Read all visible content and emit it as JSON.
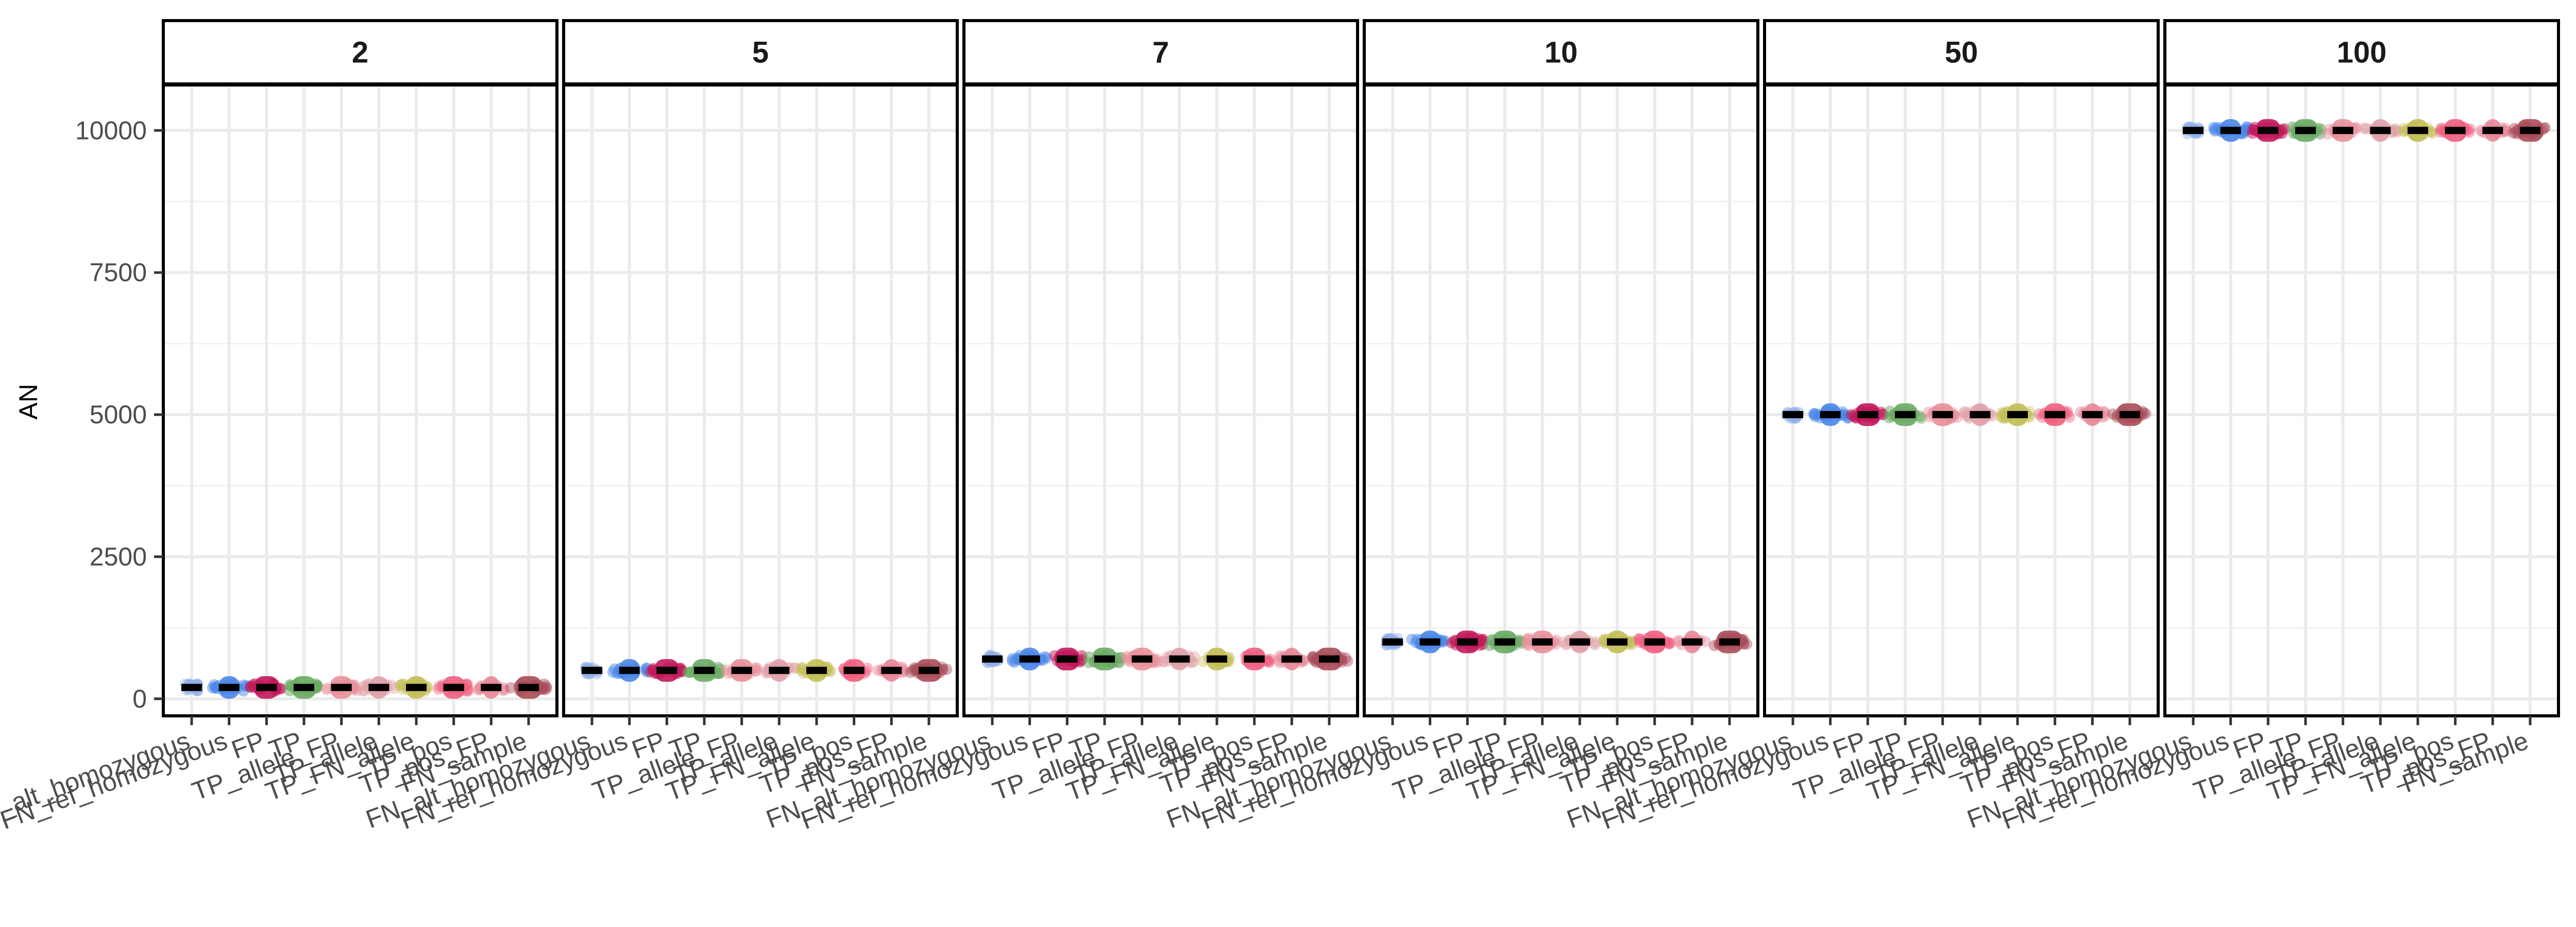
{
  "chart_data": {
    "type": "scatter",
    "ylabel": "AN",
    "xlabel": "",
    "ylim": [
      -300,
      10800
    ],
    "yticks": [
      0,
      2500,
      5000,
      7500,
      10000
    ],
    "grid": true,
    "legend": "none",
    "categories": [
      "FN_alt_homozygous",
      "FN_ref_homozygous",
      "FP",
      "TP",
      "TP_allele_FP",
      "TP_allele",
      "TP_FN_allele",
      "TP_pos",
      "TP_pos_FP",
      "FN_sample"
    ],
    "category_colors": [
      "#8fb0e8",
      "#4a86e8",
      "#c2185b",
      "#6aaa64",
      "#e8909a",
      "#e0a0a8",
      "#c2be55",
      "#f06080",
      "#e88898",
      "#a84c58"
    ],
    "category_box_width": [
      0.1,
      0.55,
      0.65,
      0.65,
      0.6,
      0.5,
      0.55,
      0.6,
      0.45,
      0.7
    ],
    "category_dot_spread": [
      0.12,
      0.22,
      0.12,
      0.12,
      0.12,
      0.2,
      0.16,
      0.14,
      0.14,
      0.14
    ],
    "category_dot_opacity": [
      0.55,
      0.6,
      0.65,
      0.65,
      0.55,
      0.5,
      0.5,
      0.55,
      0.55,
      0.55
    ],
    "facets": [
      {
        "label": "2",
        "values": [
          200,
          200,
          200,
          200,
          200,
          200,
          200,
          200,
          200,
          200
        ]
      },
      {
        "label": "5",
        "values": [
          500,
          500,
          500,
          500,
          500,
          500,
          500,
          500,
          500,
          500
        ]
      },
      {
        "label": "7",
        "values": [
          700,
          700,
          700,
          700,
          700,
          700,
          700,
          700,
          700,
          700
        ]
      },
      {
        "label": "10",
        "values": [
          1000,
          1000,
          1000,
          1000,
          1000,
          1000,
          1000,
          1000,
          1000,
          1000
        ]
      },
      {
        "label": "50",
        "values": [
          5000,
          5000,
          5000,
          5000,
          5000,
          5000,
          5000,
          5000,
          5000,
          5000
        ]
      },
      {
        "label": "100",
        "values": [
          10000,
          10000,
          10000,
          10000,
          10000,
          10000,
          10000,
          10000,
          10000,
          10000
        ]
      }
    ]
  }
}
